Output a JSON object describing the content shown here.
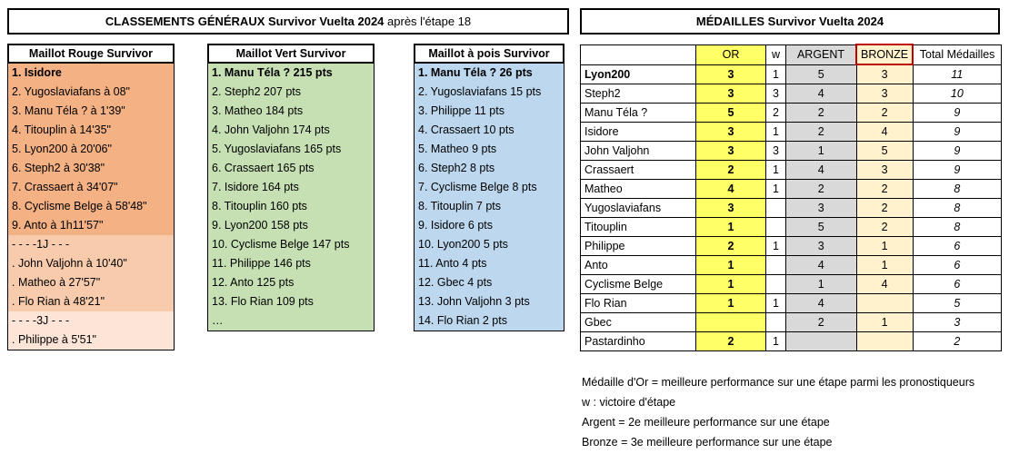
{
  "classements": {
    "title_bold": "CLASSEMENTS GÉNÉRAUX Survivor Vuelta 2024",
    "title_rest": " après l'étape 18",
    "columns": [
      {
        "header": "Maillot Rouge Survivor",
        "shades": [
          "#F4B183",
          "#F8CBAD",
          "#FCE4D6"
        ],
        "rows": [
          {
            "text": "1. Isidore",
            "bold": true,
            "shade": 0
          },
          {
            "text": "2. Yugoslaviafans à 08\"",
            "shade": 0
          },
          {
            "text": "3. Manu Téla ? à 1'39\"",
            "shade": 0
          },
          {
            "text": "4. Titouplin à 14'35\"",
            "shade": 0
          },
          {
            "text": "5. Lyon200 à 20'06\"",
            "shade": 0
          },
          {
            "text": "6. Steph2 à 30'38\"",
            "shade": 0
          },
          {
            "text": "7. Crassaert à 34'07\"",
            "shade": 0
          },
          {
            "text": "8. Cyclisme Belge à 58'48\"",
            "shade": 0
          },
          {
            "text": "9. Anto à 1h11'57\"",
            "shade": 0
          },
          {
            "text": "- - - -1J - - -",
            "shade": 1
          },
          {
            "text": ". John Valjohn à 10'40\"",
            "shade": 1
          },
          {
            "text": ". Matheo à 27'57\"",
            "shade": 1
          },
          {
            "text": ". Flo Rian à 48'21\"",
            "shade": 1
          },
          {
            "text": "- - - -3J - - -",
            "shade": 2
          },
          {
            "text": ". Philippe à 5'51\"",
            "shade": 2
          }
        ]
      },
      {
        "header": "Maillot Vert Survivor",
        "shades": [
          "#C6E0B4"
        ],
        "rows": [
          {
            "text": "1. Manu Téla ? 215 pts",
            "bold": true
          },
          {
            "text": "2. Steph2 207 pts"
          },
          {
            "text": "3. Matheo 184 pts"
          },
          {
            "text": "4. John Valjohn 174 pts"
          },
          {
            "text": "5. Yugoslaviafans 165 pts"
          },
          {
            "text": "6. Crassaert 165 pts"
          },
          {
            "text": "7. Isidore 164 pts"
          },
          {
            "text": "8. Titouplin 160 pts"
          },
          {
            "text": "9. Lyon200 158 pts"
          },
          {
            "text": "10. Cyclisme Belge 147 pts"
          },
          {
            "text": "11. Philippe 146 pts"
          },
          {
            "text": "12. Anto 125 pts"
          },
          {
            "text": "13. Flo Rian 109 pts"
          },
          {
            "text": "…"
          }
        ]
      },
      {
        "header": "Maillot à pois Survivor",
        "shades": [
          "#BDD7EE"
        ],
        "rows": [
          {
            "text": "1. Manu Téla ? 26 pts",
            "bold": true
          },
          {
            "text": "2. Yugoslaviafans 15 pts"
          },
          {
            "text": "3. Philippe 11 pts"
          },
          {
            "text": "4. Crassaert 10 pts"
          },
          {
            "text": "5. Matheo 9 pts"
          },
          {
            "text": "6. Steph2 8 pts"
          },
          {
            "text": "7. Cyclisme Belge 8 pts"
          },
          {
            "text": "8. Titouplin 7 pts"
          },
          {
            "text": "9. Isidore 6 pts"
          },
          {
            "text": "10. Lyon200 5 pts"
          },
          {
            "text": "11. Anto 4 pts"
          },
          {
            "text": "12. Gbec 4 pts"
          },
          {
            "text": "13. John Valjohn 3 pts"
          },
          {
            "text": "14. Flo Rian 2 pts"
          }
        ]
      }
    ]
  },
  "medailles": {
    "title": "MÉDAILLES Survivor Vuelta 2024",
    "headers": [
      "",
      "OR",
      "w",
      "ARGENT",
      "BRONZE",
      "Total Médailles"
    ],
    "colors": {
      "or": "#FFFF66",
      "argent": "#D9D9D9",
      "bronze": "#FFF2CC",
      "bronze_header_border": "#C00000"
    },
    "rows": [
      {
        "name": "Lyon200",
        "bold": true,
        "or": "3",
        "w": "1",
        "argent": "5",
        "bronze": "3",
        "total": "11"
      },
      {
        "name": "Steph2",
        "or": "3",
        "w": "3",
        "argent": "4",
        "bronze": "3",
        "total": "10"
      },
      {
        "name": "Manu Téla ?",
        "or": "5",
        "w": "2",
        "argent": "2",
        "bronze": "2",
        "total": "9"
      },
      {
        "name": "Isidore",
        "or": "3",
        "w": "1",
        "argent": "2",
        "bronze": "4",
        "total": "9"
      },
      {
        "name": "John Valjohn",
        "or": "3",
        "w": "3",
        "argent": "1",
        "bronze": "5",
        "total": "9"
      },
      {
        "name": "Crassaert",
        "or": "2",
        "w": "1",
        "argent": "4",
        "bronze": "3",
        "total": "9"
      },
      {
        "name": "Matheo",
        "or": "4",
        "w": "1",
        "argent": "2",
        "bronze": "2",
        "total": "8"
      },
      {
        "name": "Yugoslaviafans",
        "or": "3",
        "w": "",
        "argent": "3",
        "bronze": "2",
        "total": "8"
      },
      {
        "name": "Titouplin",
        "or": "1",
        "w": "",
        "argent": "5",
        "bronze": "2",
        "total": "8"
      },
      {
        "name": "Philippe",
        "or": "2",
        "w": "1",
        "argent": "3",
        "bronze": "1",
        "total": "6"
      },
      {
        "name": "Anto",
        "or": "1",
        "w": "",
        "argent": "4",
        "bronze": "1",
        "total": "6"
      },
      {
        "name": "Cyclisme Belge",
        "or": "1",
        "w": "",
        "argent": "1",
        "bronze": "4",
        "total": "6"
      },
      {
        "name": "Flo Rian",
        "or": "1",
        "w": "1",
        "argent": "4",
        "bronze": "",
        "total": "5"
      },
      {
        "name": "Gbec",
        "or": "",
        "w": "",
        "argent": "2",
        "bronze": "1",
        "total": "3"
      },
      {
        "name": "Pastardinho",
        "or": "2",
        "w": "1",
        "argent": "",
        "bronze": "",
        "total": "2"
      }
    ]
  },
  "legend": [
    "Médaille d'Or = meilleure performance sur une étape parmi les pronostiqueurs",
    "w : victoire d'étape",
    "Argent = 2e meilleure performance sur une étape",
    "Bronze = 3e meilleure performance sur une étape"
  ]
}
